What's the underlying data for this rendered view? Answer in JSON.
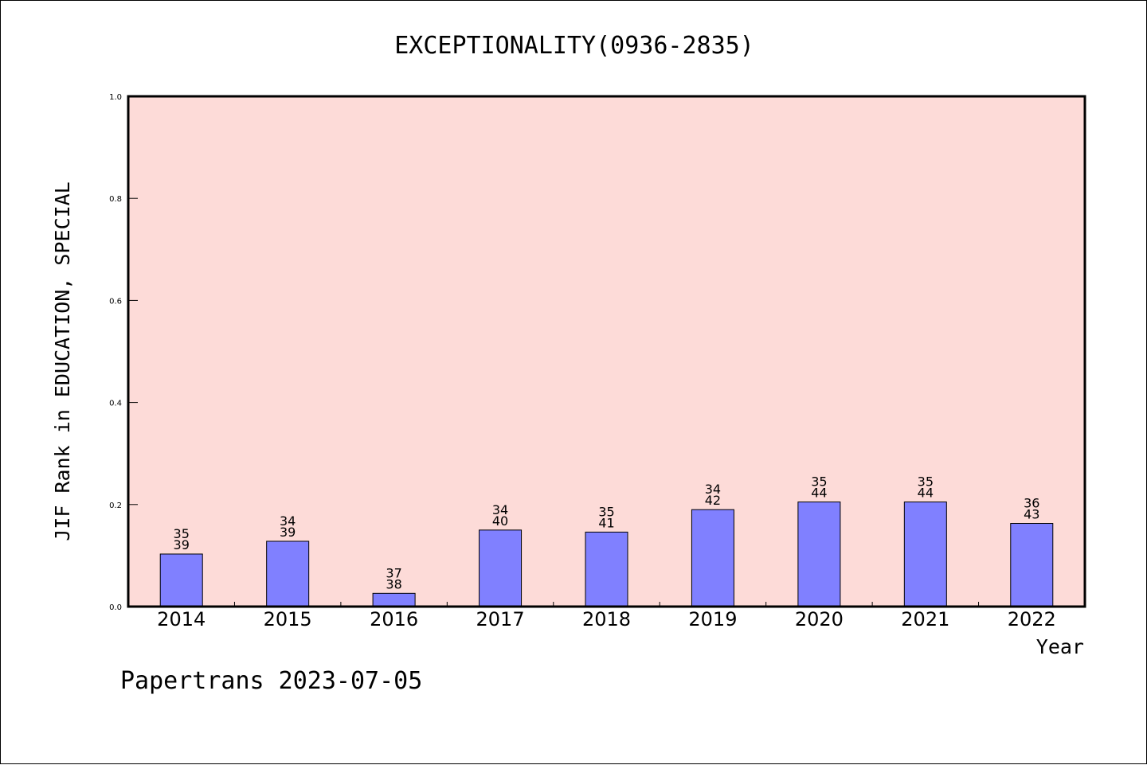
{
  "chart_data": {
    "type": "bar",
    "title": "EXCEPTIONALITY(0936-2835)",
    "xlabel": "Year",
    "ylabel": "JIF Rank in EDUCATION, SPECIAL",
    "ylim": [
      0,
      1.0
    ],
    "yticks": [
      "0.0",
      "0.2",
      "0.4",
      "0.6",
      "0.8",
      "1.0"
    ],
    "categories": [
      "2014",
      "2015",
      "2016",
      "2017",
      "2018",
      "2019",
      "2020",
      "2021",
      "2022"
    ],
    "values": [
      0.103,
      0.128,
      0.026,
      0.15,
      0.146,
      0.19,
      0.205,
      0.205,
      0.163
    ],
    "rank": [
      "35",
      "34",
      "37",
      "34",
      "35",
      "34",
      "35",
      "35",
      "36"
    ],
    "total": [
      "39",
      "39",
      "38",
      "40",
      "41",
      "42",
      "44",
      "44",
      "43"
    ],
    "grid": false,
    "colors": {
      "plot_background": "#fddbd8",
      "bar_fill": "#8080ff",
      "bar_stroke": "#000000"
    }
  },
  "footer": "Papertrans 2023-07-05"
}
